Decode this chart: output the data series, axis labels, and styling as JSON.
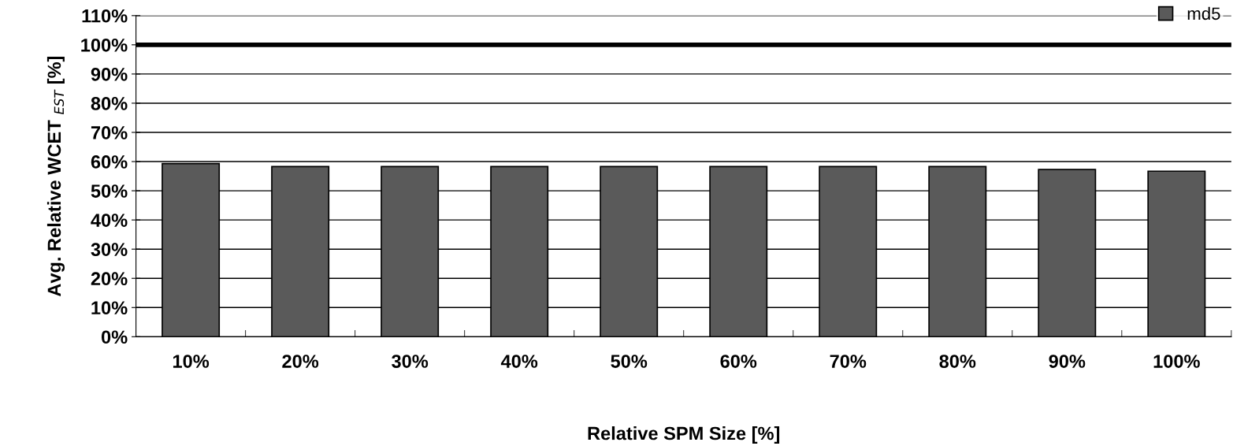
{
  "chart_data": {
    "type": "bar",
    "xlabel": "Relative SPM Size [%]",
    "ylabel": "Avg. Relative WCET $_{EST}$ [%]",
    "categories": [
      "10%",
      "20%",
      "30%",
      "40%",
      "50%",
      "60%",
      "70%",
      "80%",
      "90%",
      "100%"
    ],
    "series": [
      {
        "name": "md5",
        "color": "#5a5a5a",
        "values": [
          59.3,
          58.3,
          58.3,
          58.3,
          58.3,
          58.3,
          58.3,
          58.3,
          57.3,
          56.7
        ]
      }
    ],
    "ylim": [
      0,
      110
    ],
    "yticks": [
      {
        "value": 0,
        "label": "0%"
      },
      {
        "value": 10,
        "label": "10%"
      },
      {
        "value": 20,
        "label": "20%"
      },
      {
        "value": 30,
        "label": "30%"
      },
      {
        "value": 40,
        "label": "40%"
      },
      {
        "value": 50,
        "label": "50%"
      },
      {
        "value": 60,
        "label": "60%"
      },
      {
        "value": 70,
        "label": "70%"
      },
      {
        "value": 80,
        "label": "80%"
      },
      {
        "value": 90,
        "label": "90%"
      },
      {
        "value": 100,
        "label": "100%"
      },
      {
        "value": 110,
        "label": "110%"
      }
    ],
    "ref_lines": [
      {
        "axis": "y",
        "value": 100,
        "color": "#000000"
      }
    ],
    "grid": "y",
    "legend": "top right"
  }
}
